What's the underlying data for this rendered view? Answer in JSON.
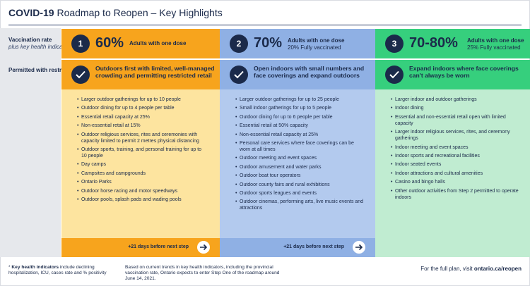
{
  "title": {
    "bold": "COVID-19",
    "rest": " Roadmap to Reopen – Key Highlights"
  },
  "left": {
    "vaccination_label": "Vaccination rate",
    "vaccination_sub": "plus key health indicators*",
    "permitted_label": "Permitted with restrictions"
  },
  "steps": [
    {
      "number": "1",
      "percent": "60%",
      "vacc_primary": "Adults with one dose",
      "vacc_secondary": "",
      "title": "Outdoors first with limited, well-managed crowding and permitting restricted retail",
      "items": [
        "Larger outdoor gatherings for up to 10 people",
        "Outdoor dining for up to 4 people per table",
        "Essential retail capacity at 25%",
        "Non-essential retail at 15%",
        "Outdoor religious services, rites and ceremonies with capacity limited to permit 2 metres physical distancing",
        "Outdoor sports, training, and personal training for up to 10 people",
        "Day camps",
        "Campsites and campgrounds",
        "Ontario Parks",
        "Outdoor horse racing and motor speedways",
        "Outdoor pools, splash pads and wading pools"
      ],
      "next": "+21 days before next step"
    },
    {
      "number": "2",
      "percent": "70%",
      "vacc_primary": "Adults with one dose",
      "vacc_secondary": "20% Fully vaccinated",
      "title": "Open indoors with small numbers and face coverings and expand outdoors",
      "items": [
        "Larger outdoor gatherings for up to 25 people",
        "Small indoor gatherings for up to 5 people",
        "Outdoor dining for up to 6 people per table",
        "Essential retail at 50% capacity",
        "Non-essential retail capacity at 25%",
        "Personal care services where face coverings can be worn at all times",
        "Outdoor meeting and event spaces",
        "Outdoor amusement and water parks",
        "Outdoor boat tour operators",
        "Outdoor county fairs and rural exhibitions",
        "Outdoor sports leagues and events",
        "Outdoor cinemas, performing arts, live music events and attractions"
      ],
      "next": "+21 days before next step"
    },
    {
      "number": "3",
      "percent": "70-80%",
      "vacc_primary": "Adults with one dose",
      "vacc_secondary": "25% Fully vaccinated",
      "title": "Expand indoors where face coverings can't always be worn",
      "items": [
        "Larger indoor and outdoor gatherings",
        "Indoor dining",
        "Essential and non-essential retail open with limited capacity",
        "Larger indoor religious services, rites, and ceremony gatherings",
        "Indoor meeting and event spaces",
        "Indoor sports and recreational facilities",
        "Indoor seated events",
        "Indoor attractions and cultural amenities",
        "Casino and bingo halls",
        "Other outdoor activities from Step 2 permitted to operate indoors"
      ],
      "next": ""
    }
  ],
  "footer": {
    "key_bold": "Key health indicators",
    "key_star": "* ",
    "key_rest": " include declining hospitalization, ICU, cases rate and % positivity",
    "trend": "Based on current trends in key health indicators, including the provincial vaccination rate, Ontario expects to enter Step One of the roadmap around June 14, 2021.",
    "plan_text": "For the full plan, visit ",
    "plan_link": "ontario.ca/reopen"
  },
  "colors": {
    "step1": "#f7a41d",
    "step2": "#8fb0e4",
    "step3": "#36cf7d",
    "navy": "#1b2a4a"
  },
  "icons": [
    "check-circle-icon",
    "arrow-right-icon"
  ]
}
